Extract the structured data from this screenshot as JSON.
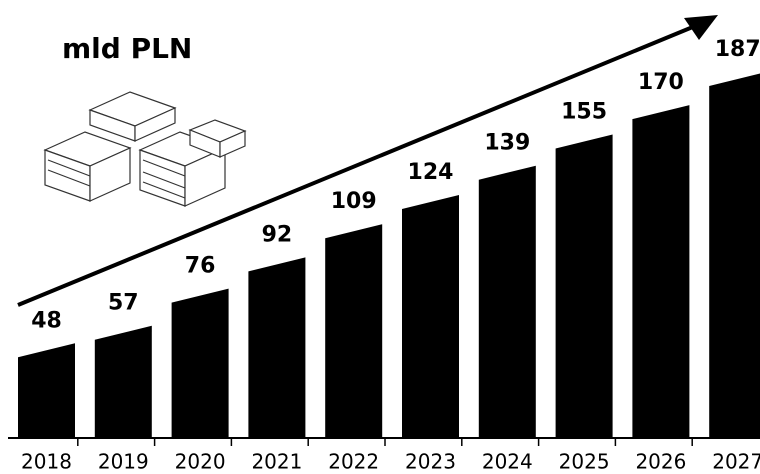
{
  "chart_data": {
    "type": "bar",
    "title": "mld PLN",
    "categories": [
      "2018",
      "2019",
      "2020",
      "2021",
      "2022",
      "2023",
      "2024",
      "2025",
      "2026",
      "2027"
    ],
    "values": [
      48,
      57,
      76,
      92,
      109,
      124,
      139,
      155,
      170,
      187
    ],
    "color": "#000000"
  }
}
